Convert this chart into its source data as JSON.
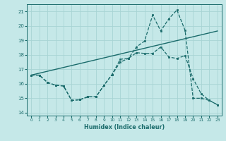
{
  "xlabel": "Humidex (Indice chaleur)",
  "bg_color": "#c5e8e8",
  "line_color": "#1a6b6b",
  "grid_color": "#a8d4d4",
  "xlim": [
    -0.5,
    23.5
  ],
  "ylim": [
    13.8,
    21.5
  ],
  "yticks": [
    14,
    15,
    16,
    17,
    18,
    19,
    20,
    21
  ],
  "xticks": [
    0,
    1,
    2,
    3,
    4,
    5,
    6,
    7,
    8,
    9,
    10,
    11,
    12,
    13,
    14,
    15,
    16,
    17,
    18,
    19,
    20,
    21,
    22,
    23
  ],
  "line_upper_x": [
    0,
    1,
    2,
    3,
    4,
    5,
    6,
    7,
    8,
    9,
    10,
    11,
    12,
    13,
    14,
    15,
    16,
    17,
    18,
    19,
    20,
    21,
    22,
    23
  ],
  "line_upper_y": [
    16.6,
    16.6,
    16.1,
    15.9,
    15.85,
    14.85,
    14.9,
    15.1,
    15.1,
    15.9,
    16.65,
    17.5,
    17.75,
    18.55,
    18.95,
    20.75,
    19.65,
    20.5,
    21.1,
    19.7,
    15.0,
    15.0,
    14.85,
    14.55
  ],
  "line_lower_x": [
    0,
    1,
    2,
    3,
    4,
    5,
    6,
    7,
    8,
    9,
    10,
    11,
    12,
    13,
    14,
    15,
    16,
    17,
    18,
    19,
    20,
    21,
    22,
    23
  ],
  "line_lower_y": [
    16.6,
    16.6,
    16.1,
    15.9,
    15.85,
    14.85,
    14.9,
    15.1,
    15.1,
    15.9,
    16.65,
    17.7,
    17.75,
    18.15,
    18.1,
    18.1,
    18.55,
    17.85,
    17.75,
    17.95,
    16.35,
    15.3,
    14.85,
    14.55
  ],
  "line_trend_x": [
    0,
    23
  ],
  "line_trend_y": [
    16.6,
    19.65
  ]
}
